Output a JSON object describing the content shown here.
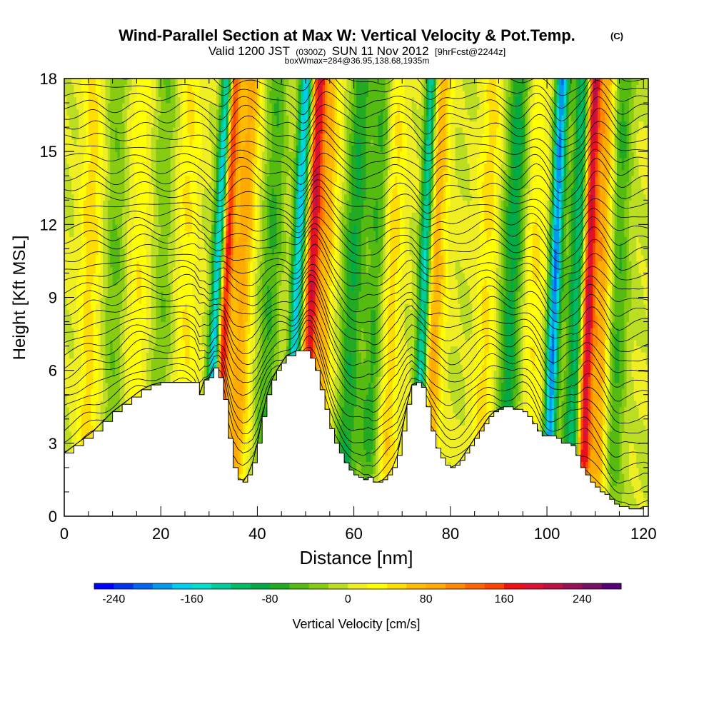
{
  "header": {
    "title": "Wind-Parallel Section at Max W: Vertical Velocity & Pot.Temp.",
    "copyright": "(C)",
    "valid_main": "Valid 1200 JST",
    "valid_utc": "(0300Z)",
    "valid_date": "SUN 11 Nov 2012",
    "forecast": "[9hrFcst@2244z]",
    "boxwmax": "boxWmax=284@36.95,138.68,1935m"
  },
  "chart_data": {
    "type": "heatmap",
    "title": "Wind-Parallel Section at Max W: Vertical Velocity & Pot.Temp.",
    "xlabel": "Distance [nm]",
    "ylabel": "Height [Kft MSL]",
    "xlim": [
      0,
      121
    ],
    "ylim": [
      0,
      18
    ],
    "xticks": [
      0,
      20,
      40,
      60,
      80,
      100,
      120
    ],
    "yticks": [
      0,
      3,
      6,
      9,
      12,
      15,
      18
    ],
    "grid": false,
    "colorbar": {
      "label": "Vertical Velocity [cm/s]",
      "min": -260,
      "max": 280,
      "ticks": [
        -240,
        -160,
        -80,
        0,
        80,
        160,
        240
      ],
      "colors": [
        "#0000ff",
        "#0033ee",
        "#0066ee",
        "#0099ee",
        "#00ccee",
        "#00ddcc",
        "#00cc99",
        "#00bb66",
        "#00aa44",
        "#22aa22",
        "#55bb11",
        "#88cc11",
        "#bbdd22",
        "#eeee22",
        "#ffff00",
        "#ffdd00",
        "#ffbb00",
        "#ffaa00",
        "#ff8800",
        "#ff6600",
        "#ff4400",
        "#ee1111",
        "#dd1133",
        "#bb1144",
        "#991155",
        "#771166",
        "#550077"
      ]
    },
    "terrain_kft": [
      [
        0,
        2.6
      ],
      [
        2,
        2.9
      ],
      [
        4,
        3.2
      ],
      [
        6,
        3.5
      ],
      [
        8,
        3.9
      ],
      [
        10,
        4.3
      ],
      [
        12,
        4.6
      ],
      [
        14,
        4.9
      ],
      [
        16,
        5.2
      ],
      [
        18,
        5.4
      ],
      [
        20,
        5.5
      ],
      [
        22,
        5.5
      ],
      [
        25,
        5.5
      ],
      [
        27,
        5.5
      ],
      [
        28,
        5.0
      ],
      [
        29,
        5.6
      ],
      [
        30,
        5.7
      ],
      [
        31,
        6.1
      ],
      [
        32,
        5.7
      ],
      [
        33,
        4.8
      ],
      [
        34,
        3.2
      ],
      [
        35,
        2.0
      ],
      [
        36,
        1.5
      ],
      [
        37,
        1.4
      ],
      [
        38,
        1.7
      ],
      [
        39,
        2.2
      ],
      [
        40,
        3.0
      ],
      [
        41,
        4.1
      ],
      [
        42,
        5.0
      ],
      [
        43,
        5.6
      ],
      [
        44,
        6.0
      ],
      [
        45,
        6.3
      ],
      [
        46,
        6.6
      ],
      [
        48,
        6.8
      ],
      [
        50,
        6.8
      ],
      [
        51,
        6.5
      ],
      [
        52,
        6.0
      ],
      [
        53,
        5.2
      ],
      [
        54,
        4.4
      ],
      [
        55,
        3.6
      ],
      [
        56,
        3.0
      ],
      [
        57,
        2.6
      ],
      [
        58,
        2.2
      ],
      [
        59,
        1.9
      ],
      [
        60,
        1.7
      ],
      [
        61,
        1.6
      ],
      [
        62,
        1.5
      ],
      [
        63,
        1.6
      ],
      [
        64,
        1.4
      ],
      [
        65,
        1.4
      ],
      [
        66,
        1.5
      ],
      [
        67,
        1.7
      ],
      [
        68,
        2.0
      ],
      [
        69,
        2.5
      ],
      [
        70,
        3.5
      ],
      [
        71,
        4.6
      ],
      [
        72,
        5.4
      ],
      [
        73,
        5.5
      ],
      [
        74,
        5.3
      ],
      [
        75,
        4.5
      ],
      [
        76,
        3.5
      ],
      [
        77,
        2.8
      ],
      [
        78,
        2.4
      ],
      [
        79,
        2.1
      ],
      [
        80,
        2.0
      ],
      [
        81,
        2.1
      ],
      [
        82,
        2.3
      ],
      [
        83,
        2.6
      ],
      [
        84,
        2.9
      ],
      [
        85,
        3.2
      ],
      [
        86,
        3.5
      ],
      [
        87,
        3.8
      ],
      [
        88,
        4.1
      ],
      [
        89,
        4.3
      ],
      [
        90,
        4.4
      ],
      [
        91,
        4.5
      ],
      [
        92,
        4.5
      ],
      [
        93,
        4.4
      ],
      [
        94,
        4.4
      ],
      [
        95,
        4.3
      ],
      [
        96,
        4.1
      ],
      [
        97,
        3.8
      ],
      [
        98,
        3.5
      ],
      [
        99,
        3.3
      ],
      [
        100,
        3.3
      ],
      [
        101,
        3.3
      ],
      [
        102,
        3.2
      ],
      [
        103,
        3.0
      ],
      [
        104,
        3.0
      ],
      [
        105,
        2.9
      ],
      [
        106,
        2.5
      ],
      [
        107,
        2.0
      ],
      [
        108,
        1.7
      ],
      [
        109,
        1.4
      ],
      [
        110,
        1.2
      ],
      [
        111,
        1.0
      ],
      [
        112,
        0.9
      ],
      [
        113,
        0.7
      ],
      [
        114,
        0.5
      ],
      [
        115,
        0.4
      ],
      [
        116,
        0.4
      ],
      [
        117,
        0.3
      ],
      [
        118,
        0.3
      ],
      [
        119,
        0.3
      ],
      [
        120,
        0.4
      ],
      [
        121,
        0.4
      ]
    ],
    "updrafts": [
      {
        "x": 32.5,
        "tilt": 0.22,
        "amp": 200
      },
      {
        "x": 50.5,
        "tilt": 0.2,
        "amp": 170
      },
      {
        "x": 108,
        "tilt": 0.15,
        "amp": 230
      },
      {
        "x": 76,
        "tilt": 0.15,
        "amp": 90
      },
      {
        "x": 36,
        "tilt": 0.22,
        "amp": 90
      },
      {
        "x": 53,
        "tilt": 0.18,
        "amp": 80
      },
      {
        "x": 111,
        "tilt": 0.12,
        "amp": 100
      },
      {
        "x": 5,
        "tilt": 0.1,
        "amp": 50
      },
      {
        "x": 15,
        "tilt": 0.1,
        "amp": 35
      },
      {
        "x": 25,
        "tilt": 0.1,
        "amp": 40
      },
      {
        "x": 67,
        "tilt": 0.15,
        "amp": 60
      },
      {
        "x": 87,
        "tilt": 0.15,
        "amp": 45
      },
      {
        "x": 97,
        "tilt": 0.12,
        "amp": 40
      }
    ],
    "downdrafts": [
      {
        "x": 31,
        "tilt": 0.25,
        "amp": -210
      },
      {
        "x": 47.5,
        "tilt": 0.22,
        "amp": -170
      },
      {
        "x": 74,
        "tilt": 0.18,
        "amp": -180
      },
      {
        "x": 101,
        "tilt": 0.18,
        "amp": -200
      },
      {
        "x": 106,
        "tilt": 0.16,
        "amp": -120
      },
      {
        "x": 59,
        "tilt": 0.22,
        "amp": -80
      },
      {
        "x": 64,
        "tilt": 0.22,
        "amp": -70
      },
      {
        "x": 92,
        "tilt": 0.2,
        "amp": -90
      },
      {
        "x": 114,
        "tilt": 0.14,
        "amp": -70
      },
      {
        "x": 42,
        "tilt": 0.2,
        "amp": -60
      },
      {
        "x": 10,
        "tilt": 0.1,
        "amp": -40
      },
      {
        "x": 20,
        "tilt": 0.1,
        "amp": -35
      }
    ],
    "theta_contours": {
      "field": "potential temperature",
      "levels_from": 4,
      "levels_to": 46,
      "step": 1
    }
  }
}
